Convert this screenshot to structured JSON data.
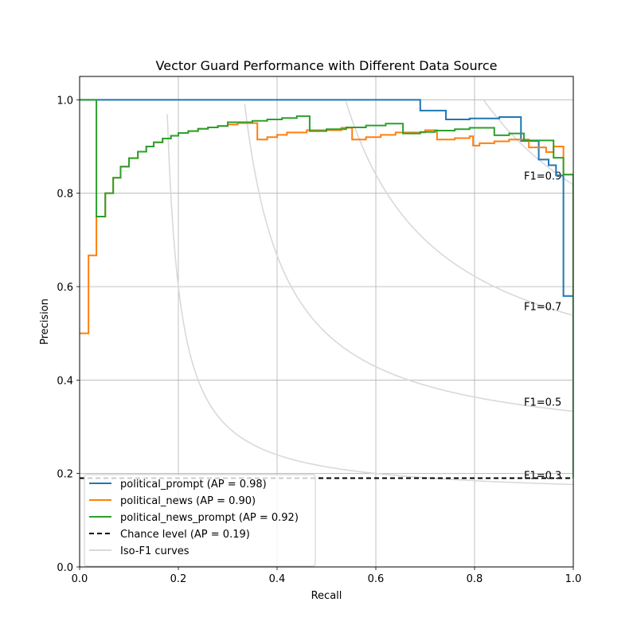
{
  "chart_data": {
    "type": "line",
    "title": "Vector Guard Performance with Different Data Source",
    "xlabel": "Recall",
    "ylabel": "Precision",
    "xlim": [
      0,
      1
    ],
    "ylim": [
      0,
      1.05
    ],
    "xticks": [
      "0.0",
      "0.2",
      "0.4",
      "0.6",
      "0.8",
      "1.0"
    ],
    "yticks": [
      "0.0",
      "0.2",
      "0.4",
      "0.6",
      "0.8",
      "1.0"
    ],
    "grid": true,
    "legend_position": "lower-left",
    "series": [
      {
        "name": "political_prompt (AP = 0.98)",
        "color": "#1f77b4",
        "style": "step",
        "points": [
          [
            0,
            1.0
          ],
          [
            0.69,
            1.0
          ],
          [
            0.69,
            0.977
          ],
          [
            0.742,
            0.977
          ],
          [
            0.742,
            0.958
          ],
          [
            0.79,
            0.958
          ],
          [
            0.79,
            0.96
          ],
          [
            0.85,
            0.96
          ],
          [
            0.85,
            0.963
          ],
          [
            0.894,
            0.963
          ],
          [
            0.894,
            0.912
          ],
          [
            0.93,
            0.912
          ],
          [
            0.93,
            0.872
          ],
          [
            0.95,
            0.872
          ],
          [
            0.95,
            0.86
          ],
          [
            0.965,
            0.86
          ],
          [
            0.965,
            0.838
          ],
          [
            0.98,
            0.838
          ],
          [
            0.98,
            0.58
          ],
          [
            1.0,
            0.58
          ],
          [
            1.0,
            0.19
          ]
        ]
      },
      {
        "name": "political_news (AP = 0.90)",
        "color": "#ff7f0e",
        "style": "step",
        "points": [
          [
            0,
            0.5
          ],
          [
            0.018,
            0.5
          ],
          [
            0.018,
            0.667
          ],
          [
            0.034,
            0.667
          ],
          [
            0.034,
            0.75
          ],
          [
            0.052,
            0.75
          ],
          [
            0.052,
            0.8
          ],
          [
            0.068,
            0.8
          ],
          [
            0.068,
            0.833
          ],
          [
            0.083,
            0.833
          ],
          [
            0.083,
            0.857
          ],
          [
            0.1,
            0.857
          ],
          [
            0.1,
            0.875
          ],
          [
            0.118,
            0.875
          ],
          [
            0.118,
            0.889
          ],
          [
            0.135,
            0.889
          ],
          [
            0.135,
            0.9
          ],
          [
            0.15,
            0.9
          ],
          [
            0.15,
            0.909
          ],
          [
            0.168,
            0.909
          ],
          [
            0.168,
            0.917
          ],
          [
            0.185,
            0.917
          ],
          [
            0.185,
            0.923
          ],
          [
            0.2,
            0.923
          ],
          [
            0.2,
            0.929
          ],
          [
            0.22,
            0.929
          ],
          [
            0.22,
            0.933
          ],
          [
            0.24,
            0.933
          ],
          [
            0.24,
            0.938
          ],
          [
            0.26,
            0.938
          ],
          [
            0.26,
            0.941
          ],
          [
            0.28,
            0.941
          ],
          [
            0.28,
            0.944
          ],
          [
            0.3,
            0.944
          ],
          [
            0.3,
            0.947
          ],
          [
            0.32,
            0.947
          ],
          [
            0.32,
            0.95
          ],
          [
            0.36,
            0.95
          ],
          [
            0.36,
            0.915
          ],
          [
            0.38,
            0.915
          ],
          [
            0.38,
            0.92
          ],
          [
            0.4,
            0.92
          ],
          [
            0.4,
            0.925
          ],
          [
            0.42,
            0.925
          ],
          [
            0.42,
            0.93
          ],
          [
            0.46,
            0.93
          ],
          [
            0.46,
            0.935
          ],
          [
            0.53,
            0.935
          ],
          [
            0.53,
            0.94
          ],
          [
            0.552,
            0.94
          ],
          [
            0.552,
            0.915
          ],
          [
            0.58,
            0.915
          ],
          [
            0.58,
            0.92
          ],
          [
            0.61,
            0.92
          ],
          [
            0.61,
            0.925
          ],
          [
            0.64,
            0.925
          ],
          [
            0.64,
            0.93
          ],
          [
            0.7,
            0.93
          ],
          [
            0.7,
            0.935
          ],
          [
            0.724,
            0.935
          ],
          [
            0.724,
            0.915
          ],
          [
            0.76,
            0.915
          ],
          [
            0.76,
            0.918
          ],
          [
            0.79,
            0.918
          ],
          [
            0.79,
            0.922
          ],
          [
            0.797,
            0.922
          ],
          [
            0.797,
            0.902
          ],
          [
            0.81,
            0.902
          ],
          [
            0.81,
            0.907
          ],
          [
            0.84,
            0.907
          ],
          [
            0.84,
            0.911
          ],
          [
            0.87,
            0.911
          ],
          [
            0.87,
            0.915
          ],
          [
            0.91,
            0.915
          ],
          [
            0.91,
            0.898
          ],
          [
            0.945,
            0.898
          ],
          [
            0.945,
            0.888
          ],
          [
            0.96,
            0.888
          ],
          [
            0.96,
            0.9
          ],
          [
            0.98,
            0.9
          ],
          [
            0.98,
            0.84
          ],
          [
            1.0,
            0.84
          ],
          [
            1.0,
            0.19
          ]
        ]
      },
      {
        "name": "political_news_prompt (AP = 0.92)",
        "color": "#2ca02c",
        "style": "step",
        "points": [
          [
            0,
            1.0
          ],
          [
            0.034,
            1.0
          ],
          [
            0.034,
            0.75
          ],
          [
            0.052,
            0.75
          ],
          [
            0.052,
            0.8
          ],
          [
            0.068,
            0.8
          ],
          [
            0.068,
            0.833
          ],
          [
            0.083,
            0.833
          ],
          [
            0.083,
            0.857
          ],
          [
            0.1,
            0.857
          ],
          [
            0.1,
            0.875
          ],
          [
            0.118,
            0.875
          ],
          [
            0.118,
            0.889
          ],
          [
            0.135,
            0.889
          ],
          [
            0.135,
            0.9
          ],
          [
            0.15,
            0.9
          ],
          [
            0.15,
            0.909
          ],
          [
            0.168,
            0.909
          ],
          [
            0.168,
            0.917
          ],
          [
            0.185,
            0.917
          ],
          [
            0.185,
            0.923
          ],
          [
            0.2,
            0.923
          ],
          [
            0.2,
            0.929
          ],
          [
            0.22,
            0.929
          ],
          [
            0.22,
            0.933
          ],
          [
            0.24,
            0.933
          ],
          [
            0.24,
            0.938
          ],
          [
            0.26,
            0.938
          ],
          [
            0.26,
            0.941
          ],
          [
            0.28,
            0.941
          ],
          [
            0.28,
            0.944
          ],
          [
            0.3,
            0.944
          ],
          [
            0.3,
            0.952
          ],
          [
            0.35,
            0.952
          ],
          [
            0.35,
            0.955
          ],
          [
            0.38,
            0.955
          ],
          [
            0.38,
            0.958
          ],
          [
            0.41,
            0.958
          ],
          [
            0.41,
            0.961
          ],
          [
            0.44,
            0.961
          ],
          [
            0.44,
            0.965
          ],
          [
            0.466,
            0.965
          ],
          [
            0.466,
            0.933
          ],
          [
            0.5,
            0.933
          ],
          [
            0.5,
            0.937
          ],
          [
            0.54,
            0.937
          ],
          [
            0.54,
            0.941
          ],
          [
            0.58,
            0.941
          ],
          [
            0.58,
            0.945
          ],
          [
            0.62,
            0.945
          ],
          [
            0.62,
            0.949
          ],
          [
            0.655,
            0.949
          ],
          [
            0.655,
            0.928
          ],
          [
            0.69,
            0.928
          ],
          [
            0.69,
            0.931
          ],
          [
            0.72,
            0.931
          ],
          [
            0.72,
            0.934
          ],
          [
            0.76,
            0.934
          ],
          [
            0.76,
            0.937
          ],
          [
            0.79,
            0.937
          ],
          [
            0.79,
            0.94
          ],
          [
            0.84,
            0.94
          ],
          [
            0.84,
            0.924
          ],
          [
            0.87,
            0.924
          ],
          [
            0.87,
            0.928
          ],
          [
            0.9,
            0.928
          ],
          [
            0.9,
            0.913
          ],
          [
            0.96,
            0.913
          ],
          [
            0.96,
            0.876
          ],
          [
            0.98,
            0.876
          ],
          [
            0.98,
            0.84
          ],
          [
            1.0,
            0.84
          ],
          [
            1.0,
            0.19
          ]
        ]
      },
      {
        "name": "Chance level (AP = 0.19)",
        "color": "#000000",
        "style": "dashed",
        "points": [
          [
            0,
            0.19
          ],
          [
            1,
            0.19
          ]
        ]
      }
    ],
    "iso_f1": {
      "legend": "Iso-F1 curves",
      "color": "#d9d9d9",
      "values": [
        0.3,
        0.5,
        0.7,
        0.9
      ],
      "labels": [
        "F1=0.3",
        "F1=0.5",
        "F1=0.7",
        "F1=0.9"
      ]
    }
  }
}
